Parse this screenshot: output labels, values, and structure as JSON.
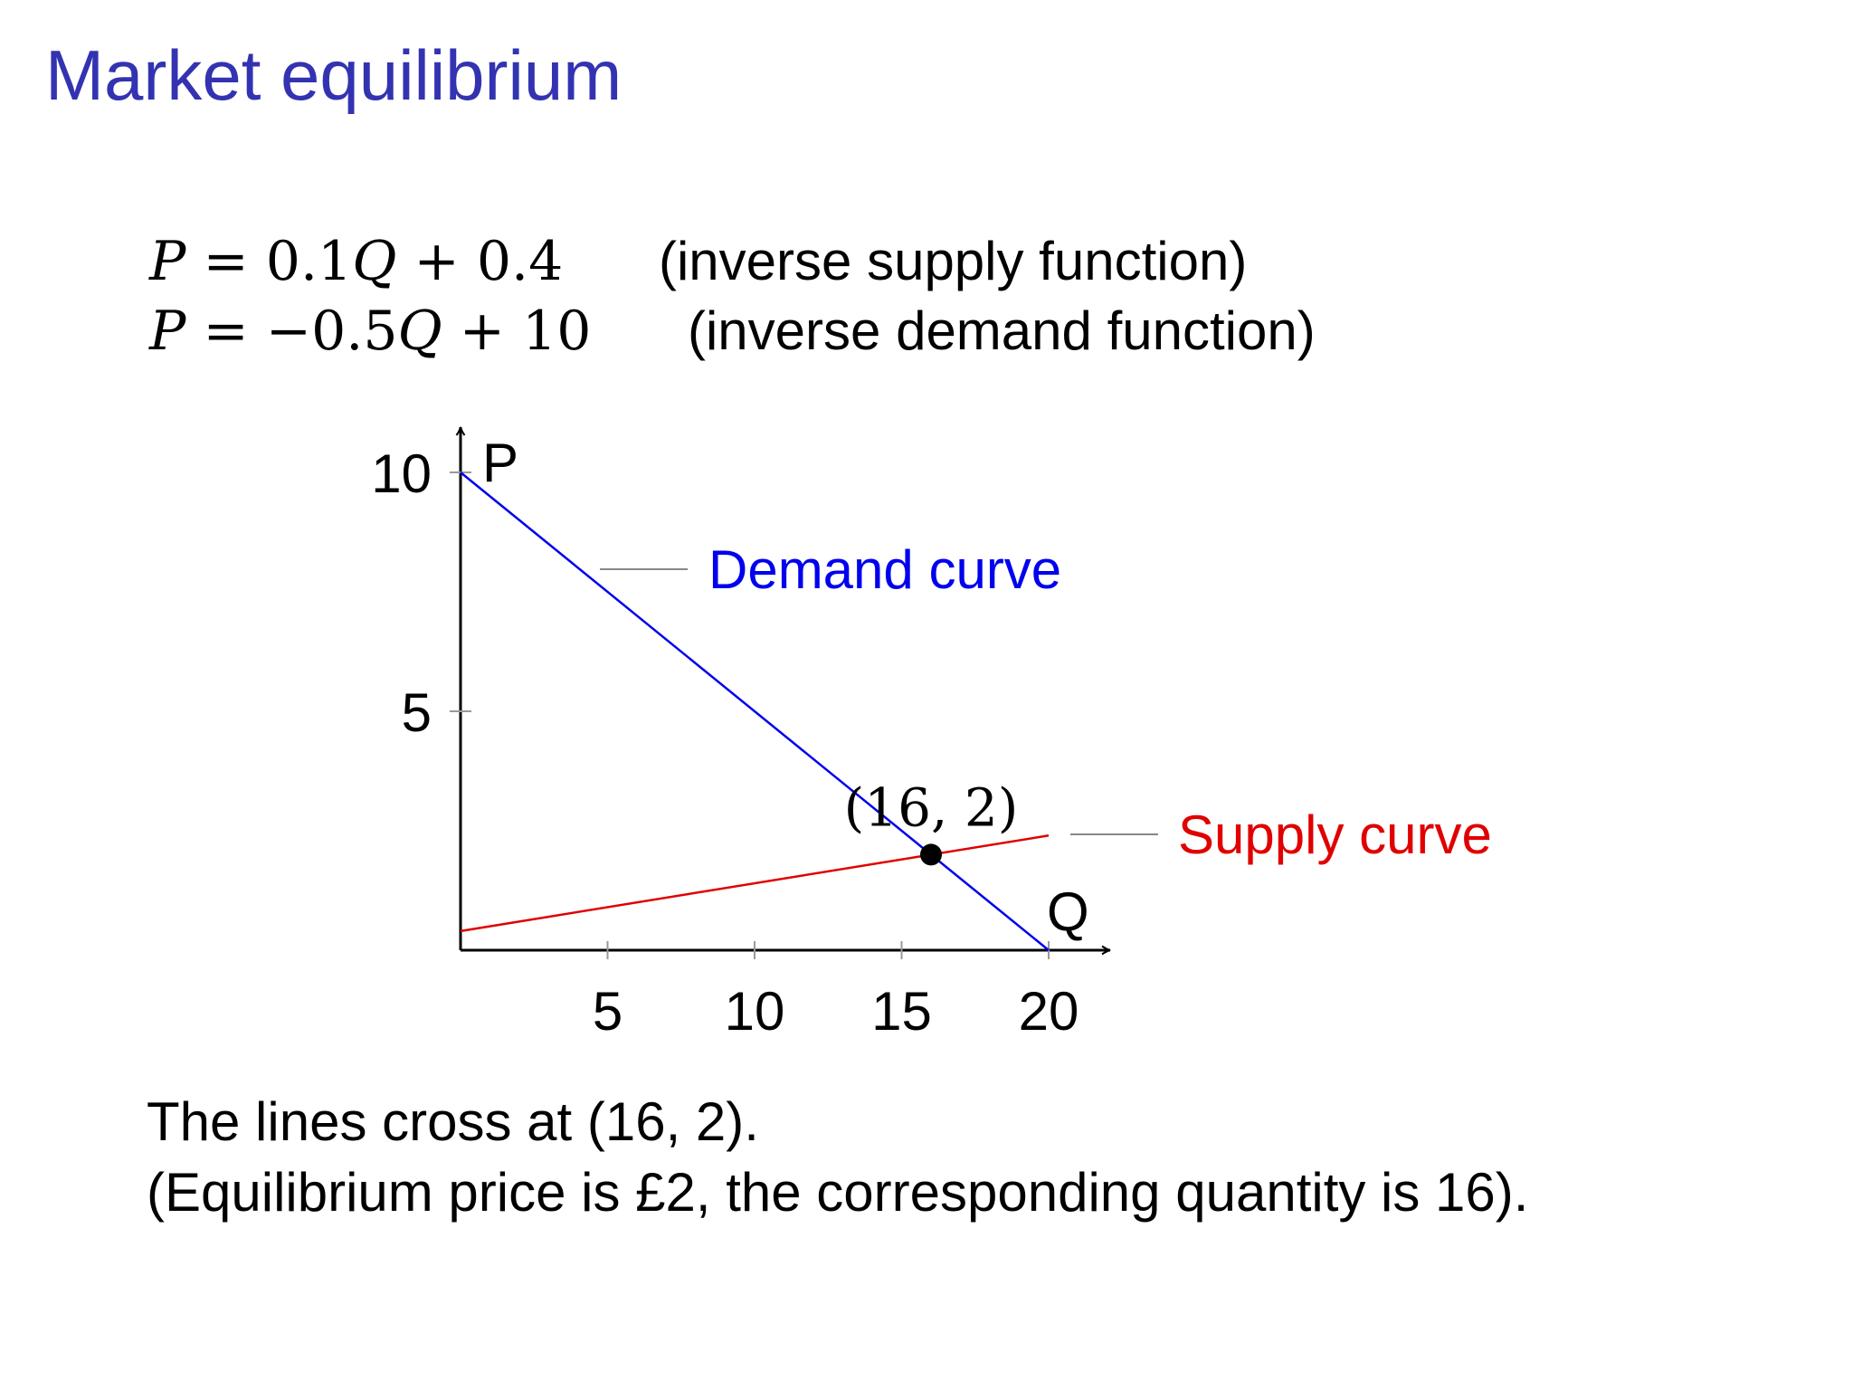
{
  "slide": {
    "title": "Market equilibrium",
    "equations": [
      {
        "lhs": "P",
        "eq": " = ",
        "rhs_prefix": "0.1",
        "var": "Q",
        "rhs_suffix": " + 0.4",
        "note": "(inverse supply function)"
      },
      {
        "lhs": "P",
        "eq": " = ",
        "rhs_prefix": "−0.5",
        "var": "Q",
        "rhs_suffix": " + 10",
        "note": "(inverse demand function)"
      }
    ],
    "conclusion": [
      "The lines cross at (16, 2).",
      "(Equilibrium price is £2, the corresponding quantity is 16)."
    ]
  },
  "chart_data": {
    "type": "line",
    "xlabel": "Q",
    "ylabel": "P",
    "xlim": [
      0,
      20
    ],
    "ylim": [
      0,
      10
    ],
    "x_ticks": [
      5,
      10,
      15,
      20
    ],
    "y_ticks": [
      5,
      10
    ],
    "series": [
      {
        "name": "Demand curve",
        "color": "#0000ee",
        "points": [
          [
            0,
            10
          ],
          [
            20,
            0
          ]
        ]
      },
      {
        "name": "Supply curve",
        "color": "#e00000",
        "points": [
          [
            0,
            0.4
          ],
          [
            20,
            2.4
          ]
        ]
      }
    ],
    "equilibrium": {
      "x": 16,
      "y": 2,
      "label": "(16, 2)"
    },
    "grid": false
  }
}
